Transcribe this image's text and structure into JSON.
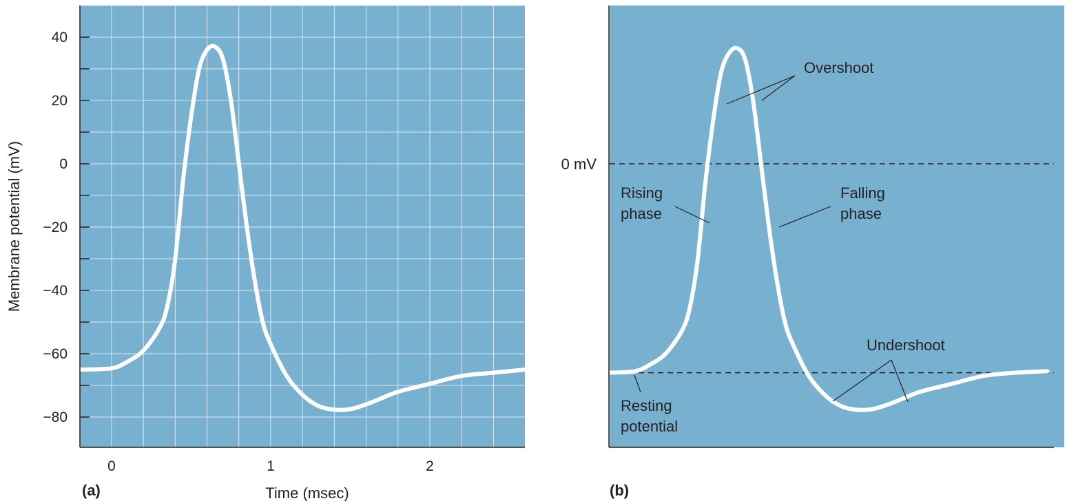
{
  "colors": {
    "plot_bg": "#78b1d0",
    "grid": "#d7e8f2",
    "trace": "#ffffff",
    "axis": "#222222",
    "leader": "#222222"
  },
  "chart_data": [
    {
      "panel": "(a)",
      "type": "line",
      "xlabel": "Time (msec)",
      "ylabel": "Membrane potential (mV)",
      "xlim": [
        -0.2,
        2.6
      ],
      "ylim": [
        -90,
        50
      ],
      "xticks": [
        0,
        1,
        2
      ],
      "xtick_labels": [
        "0",
        "1",
        "2"
      ],
      "yticks": [
        -80,
        -60,
        -40,
        -20,
        0,
        20,
        40
      ],
      "ytick_labels": [
        "−80",
        "−60",
        "−40",
        "−20",
        "0",
        "20",
        "40"
      ],
      "grid": true,
      "series": [
        {
          "x": [
            -0.2,
            0.0,
            0.1,
            0.2,
            0.3,
            0.35,
            0.4,
            0.45,
            0.5,
            0.55,
            0.6,
            0.65,
            0.7,
            0.75,
            0.8,
            0.85,
            0.9,
            0.95,
            1.0,
            1.1,
            1.2,
            1.3,
            1.4,
            1.5,
            1.6,
            1.7,
            1.8,
            2.0,
            2.2,
            2.4,
            2.6
          ],
          "y": [
            -65,
            -64.6,
            -62.5,
            -59,
            -52,
            -45,
            -30,
            -5,
            15,
            30,
            36,
            37,
            33,
            20,
            0,
            -20,
            -37,
            -50,
            -57,
            -67,
            -73,
            -76.5,
            -77.7,
            -77.5,
            -76,
            -74,
            -72,
            -69.5,
            -67,
            -66,
            -65
          ]
        }
      ]
    },
    {
      "panel": "(b)",
      "type": "line",
      "xlim": [
        -0.2,
        2.6
      ],
      "ylim": [
        -90,
        50
      ],
      "reference_lines": [
        {
          "y": 0,
          "label": "0 mV",
          "style": "dashed"
        },
        {
          "y": -66,
          "label": "",
          "style": "dashed"
        }
      ],
      "series": [
        {
          "x": [
            -0.2,
            0.0,
            0.1,
            0.2,
            0.3,
            0.35,
            0.4,
            0.45,
            0.5,
            0.55,
            0.6,
            0.65,
            0.7,
            0.75,
            0.8,
            0.85,
            0.9,
            0.95,
            1.0,
            1.1,
            1.2,
            1.3,
            1.4,
            1.5,
            1.6,
            1.7,
            1.8,
            2.0,
            2.2,
            2.4,
            2.6
          ],
          "y": [
            -66,
            -65.6,
            -63.5,
            -60,
            -53,
            -46,
            -31,
            -6,
            14,
            29,
            35,
            36.5,
            33,
            20,
            0,
            -20,
            -37,
            -50,
            -57,
            -67,
            -73,
            -76.5,
            -77.7,
            -77.5,
            -76,
            -74,
            -72,
            -69.5,
            -67,
            -66,
            -65.5
          ]
        }
      ],
      "annotations": [
        {
          "text": [
            "Overshoot"
          ],
          "points": [
            [
              0.32,
              18.5
            ],
            [
              0.68,
              20.5
            ]
          ]
        },
        {
          "text": [
            "Rising",
            "phase"
          ],
          "points": [
            [
              0.21,
              -19
            ]
          ]
        },
        {
          "text": [
            "Falling",
            "phase"
          ],
          "points": [
            [
              0.75,
              -19
            ]
          ]
        },
        {
          "text": [
            "Undershoot"
          ],
          "points": [
            [
              1.1,
              -75
            ],
            [
              1.55,
              -75
            ]
          ]
        },
        {
          "text": [
            "Resting",
            "potential"
          ],
          "points": [
            [
              -0.05,
              -66
            ]
          ]
        }
      ]
    }
  ],
  "labels": {
    "panel_a": "(a)",
    "panel_b": "(b)",
    "zero_mv": "0 mV",
    "overshoot": "Overshoot",
    "rising_1": "Rising",
    "rising_2": "phase",
    "falling_1": "Falling",
    "falling_2": "phase",
    "undershoot": "Undershoot",
    "resting_1": "Resting",
    "resting_2": "potential"
  }
}
